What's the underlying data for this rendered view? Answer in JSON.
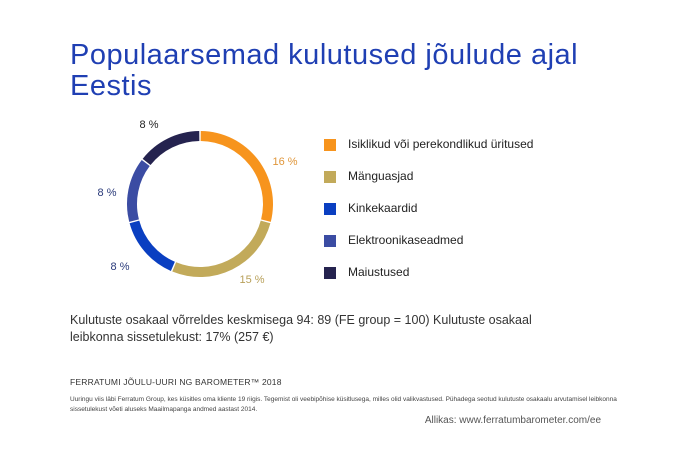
{
  "title": "Populaarsemad kulutused jõulude ajal Eestis",
  "chart_data": {
    "type": "pie",
    "title": "Populaarsemad kulutused jõulude ajal Eestis",
    "categories": [
      "Isiklikud või perekondlikud üritused",
      "Mänguasjad",
      "Kinkekaardid",
      "Elektroonikaseadmed",
      "Maiustused"
    ],
    "values": [
      16,
      15,
      8,
      8,
      8
    ],
    "value_labels": [
      "16 %",
      "15 %",
      "8 %",
      "8 %",
      "8 %"
    ],
    "colors": [
      "#f7941d",
      "#c2aa5a",
      "#0a3fc1",
      "#3b4ca3",
      "#25234f"
    ],
    "label_colors": [
      "#e0963a",
      "#b8a05a",
      "#2a3a7a",
      "#2a3a7a",
      "#222222"
    ],
    "legend_position": "right"
  },
  "summary": "Kulutuste osakaal võrreldes keskmisega 94: 89 (FE group = 100) Kulutuste osakaal leibkonna sissetulekust: 17% (257 €)",
  "footer": {
    "title": "FERRATUMI JÕULU-UURI NG BAROMETER™ 2018",
    "note": "Uuringu viis läbi Ferratum Group, kes küsitles oma kliente 19 riigis. Tegemist oli veebipõhise küsitlusega, milles olid valikvastused. Pühadega seotud kulutuste osakaalu arvutamisel leibkonna sissetulekust võeti aluseks Maailmapanga andmed aastast 2014.",
    "source": "Allikas:  www.ferratumbarometer.com/ee"
  }
}
